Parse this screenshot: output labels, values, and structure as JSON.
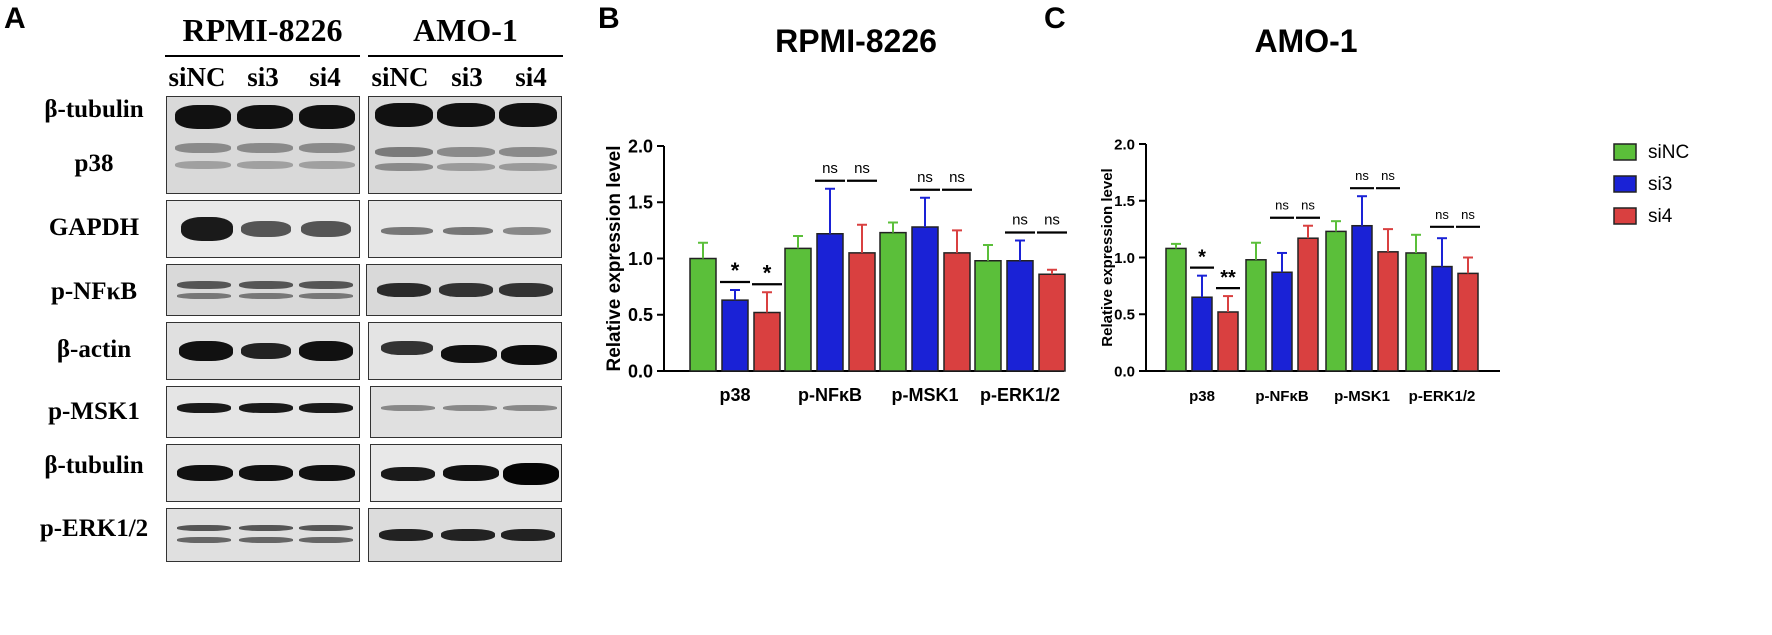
{
  "panels": {
    "a": {
      "letter": "A"
    },
    "b": {
      "letter": "B"
    },
    "c": {
      "letter": "C"
    }
  },
  "western_blot": {
    "cell_lines": [
      "RPMI-8226",
      "AMO-1"
    ],
    "lanes": [
      "siNC",
      "si3",
      "si4"
    ],
    "row_labels": [
      "β-tubulin",
      "p38",
      "GAPDH",
      "p-NFκB",
      "β-actin",
      "p-MSK1",
      "β-tubulin",
      "p-ERK1/2"
    ]
  },
  "chart_data": [
    {
      "type": "bar",
      "title": "RPMI-8226",
      "ylabel": "Relative expression level",
      "xlabel": "",
      "categories": [
        "p38",
        "p-NFκB",
        "p-MSK1",
        "p-ERK1/2"
      ],
      "ylim": [
        0,
        2.0
      ],
      "yticks": [
        "0.0",
        "0.5",
        "1.0",
        "1.5",
        "2.0"
      ],
      "series": [
        {
          "name": "siNC",
          "color": "#5bbf3a",
          "values": [
            1.0,
            1.09,
            1.23,
            0.98
          ],
          "errors": [
            0.14,
            0.11,
            0.09,
            0.14
          ]
        },
        {
          "name": "si3",
          "color": "#1a22d6",
          "values": [
            0.63,
            1.22,
            1.28,
            0.98
          ],
          "errors": [
            0.09,
            0.4,
            0.26,
            0.18
          ]
        },
        {
          "name": "si4",
          "color": "#d94040",
          "values": [
            0.52,
            1.05,
            1.05,
            0.86
          ],
          "errors": [
            0.18,
            0.25,
            0.2,
            0.04
          ]
        }
      ],
      "significance": [
        {
          "category": "p38",
          "labels": [
            "*",
            "*"
          ]
        },
        {
          "category": "p-NFκB",
          "labels": [
            "ns",
            "ns"
          ]
        },
        {
          "category": "p-MSK1",
          "labels": [
            "ns",
            "ns"
          ]
        },
        {
          "category": "p-ERK1/2",
          "labels": [
            "ns",
            "ns"
          ]
        }
      ],
      "grid": false
    },
    {
      "type": "bar",
      "title": "AMO-1",
      "ylabel": "Relative expression level",
      "xlabel": "",
      "categories": [
        "p38",
        "p-NFκB",
        "p-MSK1",
        "p-ERK1/2"
      ],
      "ylim": [
        0,
        2.0
      ],
      "yticks": [
        "0.0",
        "0.5",
        "1.0",
        "1.5",
        "2.0"
      ],
      "legend_position": "top-right",
      "series": [
        {
          "name": "siNC",
          "color": "#5bbf3a",
          "values": [
            1.08,
            0.98,
            1.23,
            1.04
          ],
          "errors": [
            0.04,
            0.15,
            0.09,
            0.16
          ]
        },
        {
          "name": "si3",
          "color": "#1a22d6",
          "values": [
            0.65,
            0.87,
            1.28,
            0.92
          ],
          "errors": [
            0.19,
            0.17,
            0.26,
            0.25
          ]
        },
        {
          "name": "si4",
          "color": "#d94040",
          "values": [
            0.52,
            1.17,
            1.05,
            0.86
          ],
          "errors": [
            0.14,
            0.11,
            0.2,
            0.14
          ]
        }
      ],
      "significance": [
        {
          "category": "p38",
          "labels": [
            "*",
            "**"
          ]
        },
        {
          "category": "p-NFκB",
          "labels": [
            "ns",
            "ns"
          ]
        },
        {
          "category": "p-MSK1",
          "labels": [
            "ns",
            "ns"
          ]
        },
        {
          "category": "p-ERK1/2",
          "labels": [
            "ns",
            "ns"
          ]
        }
      ],
      "grid": false
    }
  ]
}
